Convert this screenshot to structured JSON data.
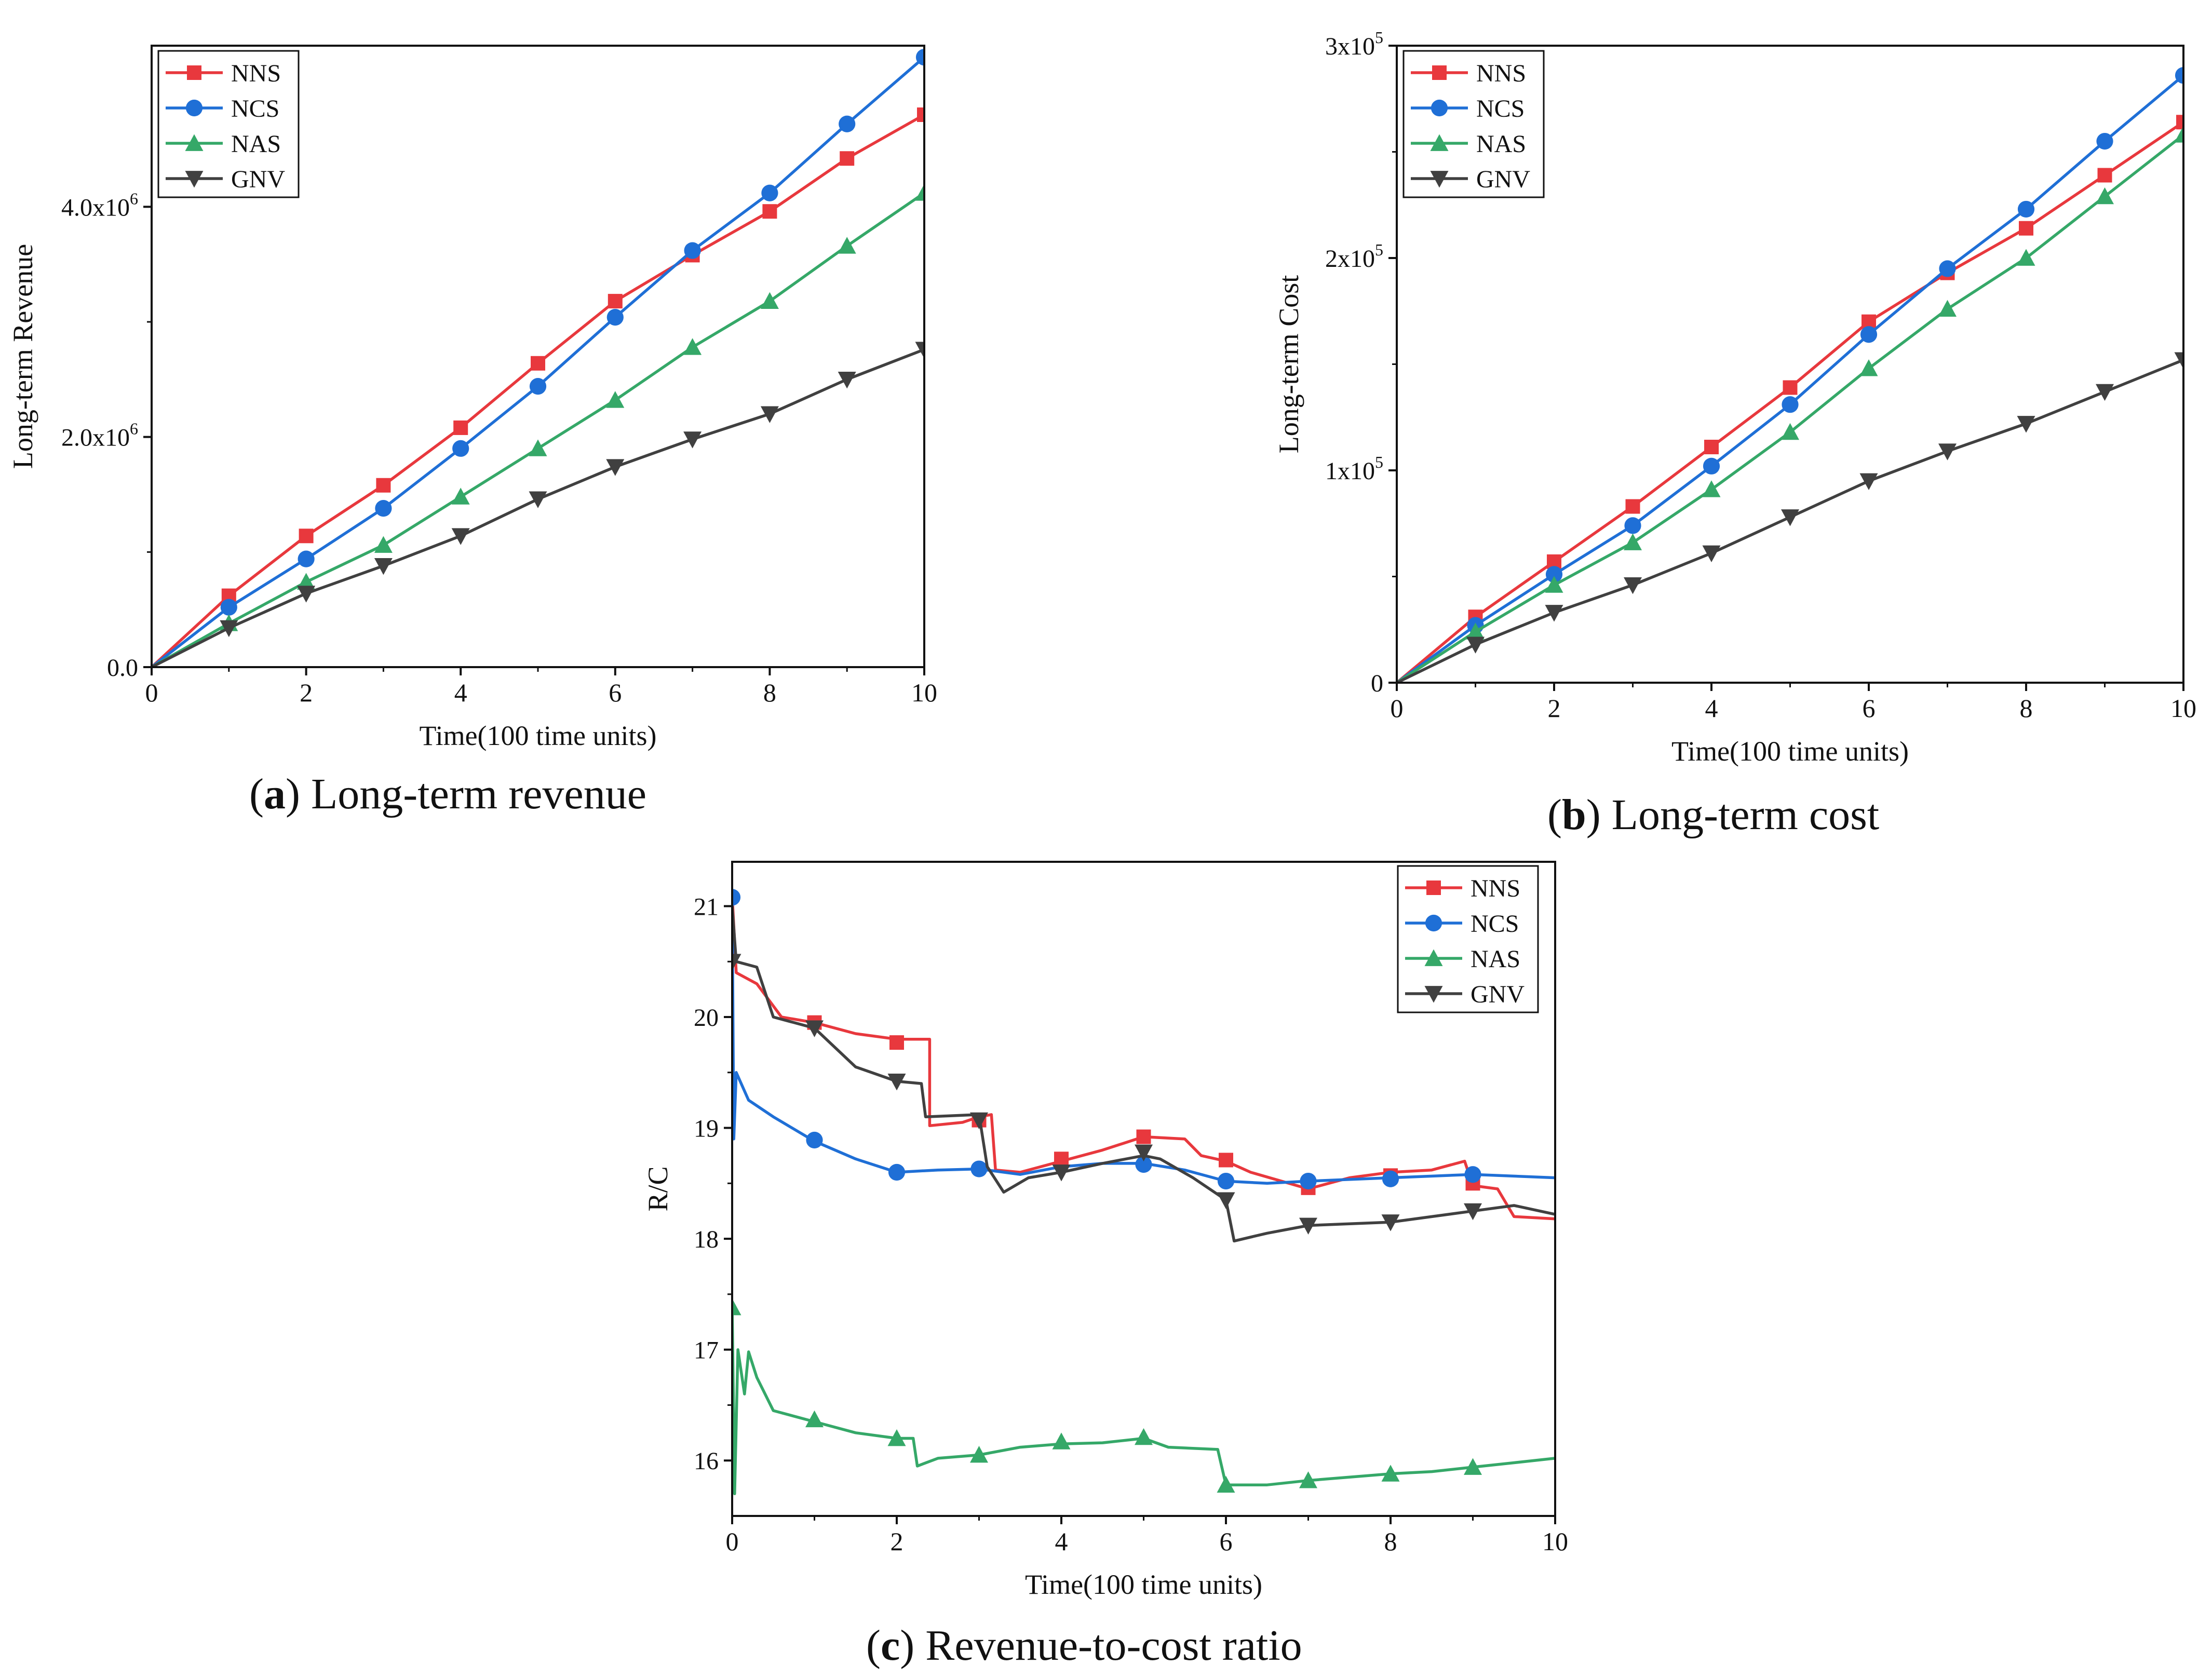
{
  "figure": {
    "captions": [
      {
        "letter": "a",
        "open": "(",
        "close": ") Long-term revenue"
      },
      {
        "letter": "b",
        "open": "(",
        "close": ") Long-term cost"
      },
      {
        "letter": "c",
        "open": "(",
        "close": ") Revenue-to-cost ratio"
      }
    ]
  },
  "colors": {
    "NNS": "#e8383d",
    "NCS": "#1f6fd6",
    "NAS": "#35a868",
    "GNV": "#404040"
  },
  "chart_data": [
    {
      "id": "a",
      "type": "line",
      "title": "",
      "xlabel": "Time(100 time units)",
      "ylabel": "Long-term Revenue",
      "xlim": [
        0,
        10
      ],
      "ylim": [
        0,
        5400000
      ],
      "xticks": [
        {
          "v": 0,
          "label": "0"
        },
        {
          "v": 2,
          "label": "2"
        },
        {
          "v": 4,
          "label": "4"
        },
        {
          "v": 6,
          "label": "6"
        },
        {
          "v": 8,
          "label": "8"
        },
        {
          "v": 10,
          "label": "10"
        }
      ],
      "yticks": [
        {
          "v": 0,
          "base": "0.0",
          "exp": ""
        },
        {
          "v": 2000000,
          "base": "2.0x10",
          "exp": "6"
        },
        {
          "v": 4000000,
          "base": "4.0x10",
          "exp": "6"
        }
      ],
      "legend": {
        "position": "top-left",
        "entries": [
          "NNS",
          "NCS",
          "NAS",
          "GNV"
        ]
      },
      "x": [
        0,
        1,
        2,
        3,
        4,
        5,
        6,
        7,
        8,
        9,
        10
      ],
      "series": [
        {
          "name": "NNS",
          "marker": "square",
          "values": [
            0,
            620000,
            1140000,
            1580000,
            2080000,
            2640000,
            3180000,
            3580000,
            3960000,
            4420000,
            4800000
          ]
        },
        {
          "name": "NCS",
          "marker": "circle",
          "values": [
            0,
            520000,
            940000,
            1380000,
            1900000,
            2440000,
            3040000,
            3620000,
            4120000,
            4720000,
            5300000
          ]
        },
        {
          "name": "NAS",
          "marker": "triangle-up",
          "values": [
            0,
            380000,
            740000,
            1060000,
            1480000,
            1900000,
            2320000,
            2780000,
            3180000,
            3660000,
            4120000
          ]
        },
        {
          "name": "GNV",
          "marker": "triangle-down",
          "values": [
            0,
            340000,
            640000,
            880000,
            1140000,
            1460000,
            1740000,
            1980000,
            2200000,
            2500000,
            2760000
          ]
        }
      ]
    },
    {
      "id": "b",
      "type": "line",
      "title": "",
      "xlabel": "Time(100 time units)",
      "ylabel": "Long-term Cost",
      "xlim": [
        0,
        10
      ],
      "ylim": [
        0,
        300000
      ],
      "xticks": [
        {
          "v": 0,
          "label": "0"
        },
        {
          "v": 2,
          "label": "2"
        },
        {
          "v": 4,
          "label": "4"
        },
        {
          "v": 6,
          "label": "6"
        },
        {
          "v": 8,
          "label": "8"
        },
        {
          "v": 10,
          "label": "10"
        }
      ],
      "yticks": [
        {
          "v": 0,
          "base": "0",
          "exp": ""
        },
        {
          "v": 100000,
          "base": "1x10",
          "exp": "5"
        },
        {
          "v": 200000,
          "base": "2x10",
          "exp": "5"
        },
        {
          "v": 300000,
          "base": "3x10",
          "exp": "5"
        }
      ],
      "legend": {
        "position": "top-left",
        "entries": [
          "NNS",
          "NCS",
          "NAS",
          "GNV"
        ]
      },
      "x": [
        0,
        1,
        2,
        3,
        4,
        5,
        6,
        7,
        8,
        9,
        10
      ],
      "series": [
        {
          "name": "NNS",
          "marker": "square",
          "values": [
            0,
            31000,
            57000,
            83000,
            111000,
            139000,
            170000,
            193000,
            214000,
            239000,
            264000
          ]
        },
        {
          "name": "NCS",
          "marker": "circle",
          "values": [
            0,
            27000,
            51000,
            74000,
            102000,
            131000,
            164000,
            195000,
            223000,
            255000,
            286000
          ]
        },
        {
          "name": "NAS",
          "marker": "triangle-up",
          "values": [
            0,
            24000,
            46000,
            66000,
            91000,
            118000,
            148000,
            176000,
            200000,
            229000,
            258000
          ]
        },
        {
          "name": "GNV",
          "marker": "triangle-down",
          "values": [
            0,
            18000,
            33000,
            46000,
            61000,
            78000,
            95000,
            109000,
            122000,
            137000,
            152000
          ]
        }
      ]
    },
    {
      "id": "c",
      "type": "line",
      "title": "",
      "xlabel": "Time(100 time units)",
      "ylabel": "R/C",
      "xlim": [
        0,
        10
      ],
      "ylim": [
        15.5,
        21.4
      ],
      "xticks": [
        {
          "v": 0,
          "label": "0"
        },
        {
          "v": 2,
          "label": "2"
        },
        {
          "v": 4,
          "label": "4"
        },
        {
          "v": 6,
          "label": "6"
        },
        {
          "v": 8,
          "label": "8"
        },
        {
          "v": 10,
          "label": "10"
        }
      ],
      "yticks": [
        {
          "v": 16,
          "base": "16",
          "exp": ""
        },
        {
          "v": 17,
          "base": "17",
          "exp": ""
        },
        {
          "v": 18,
          "base": "18",
          "exp": ""
        },
        {
          "v": 19,
          "base": "19",
          "exp": ""
        },
        {
          "v": 20,
          "base": "20",
          "exp": ""
        },
        {
          "v": 21,
          "base": "21",
          "exp": ""
        }
      ],
      "legend": {
        "position": "top-right",
        "entries": [
          "NNS",
          "NCS",
          "NAS",
          "GNV"
        ]
      },
      "series": [
        {
          "name": "NNS",
          "marker": "square",
          "points": [
            [
              0,
              21.1
            ],
            [
              0.05,
              20.4
            ],
            [
              0.3,
              20.3
            ],
            [
              0.6,
              20.0
            ],
            [
              1.0,
              19.95
            ],
            [
              1.5,
              19.85
            ],
            [
              2.0,
              19.8
            ],
            [
              2.4,
              19.8
            ],
            [
              2.4,
              19.02
            ],
            [
              2.8,
              19.05
            ],
            [
              3.0,
              19.1
            ],
            [
              3.15,
              19.12
            ],
            [
              3.2,
              18.62
            ],
            [
              3.5,
              18.6
            ],
            [
              4.0,
              18.7
            ],
            [
              4.5,
              18.8
            ],
            [
              5.0,
              18.92
            ],
            [
              5.5,
              18.9
            ],
            [
              5.7,
              18.75
            ],
            [
              6.0,
              18.7
            ],
            [
              6.3,
              18.6
            ],
            [
              7.0,
              18.45
            ],
            [
              7.5,
              18.55
            ],
            [
              8.0,
              18.6
            ],
            [
              8.5,
              18.62
            ],
            [
              8.9,
              18.7
            ],
            [
              9.0,
              18.48
            ],
            [
              9.3,
              18.45
            ],
            [
              9.5,
              18.2
            ],
            [
              10.0,
              18.18
            ]
          ],
          "markers": [
            [
              1,
              19.95
            ],
            [
              2,
              19.77
            ],
            [
              3,
              19.07
            ],
            [
              4,
              18.72
            ],
            [
              5,
              18.92
            ],
            [
              6,
              18.71
            ],
            [
              7,
              18.46
            ],
            [
              8,
              18.57
            ],
            [
              9,
              18.5
            ]
          ]
        },
        {
          "name": "NCS",
          "marker": "circle",
          "points": [
            [
              0,
              21.1
            ],
            [
              0.02,
              18.9
            ],
            [
              0.05,
              19.5
            ],
            [
              0.2,
              19.25
            ],
            [
              0.5,
              19.1
            ],
            [
              1.0,
              18.88
            ],
            [
              1.5,
              18.72
            ],
            [
              2.0,
              18.6
            ],
            [
              2.5,
              18.62
            ],
            [
              3.0,
              18.63
            ],
            [
              3.5,
              18.58
            ],
            [
              4.0,
              18.65
            ],
            [
              4.5,
              18.68
            ],
            [
              5.0,
              18.68
            ],
            [
              5.5,
              18.62
            ],
            [
              6.0,
              18.52
            ],
            [
              6.5,
              18.5
            ],
            [
              7.0,
              18.52
            ],
            [
              8.0,
              18.55
            ],
            [
              9.0,
              18.58
            ],
            [
              10.0,
              18.55
            ]
          ],
          "markers": [
            [
              0,
              21.08
            ],
            [
              1,
              18.89
            ],
            [
              2,
              18.6
            ],
            [
              3,
              18.63
            ],
            [
              5,
              18.67
            ],
            [
              6,
              18.52
            ],
            [
              7,
              18.52
            ],
            [
              8,
              18.54
            ],
            [
              9,
              18.58
            ]
          ]
        },
        {
          "name": "NAS",
          "marker": "triangle-up",
          "points": [
            [
              0,
              17.4
            ],
            [
              0.03,
              15.7
            ],
            [
              0.07,
              17.0
            ],
            [
              0.15,
              16.6
            ],
            [
              0.2,
              16.98
            ],
            [
              0.3,
              16.75
            ],
            [
              0.5,
              16.45
            ],
            [
              1.0,
              16.35
            ],
            [
              1.5,
              16.25
            ],
            [
              2.0,
              16.2
            ],
            [
              2.2,
              16.2
            ],
            [
              2.25,
              15.95
            ],
            [
              2.5,
              16.02
            ],
            [
              3.0,
              16.05
            ],
            [
              3.5,
              16.12
            ],
            [
              4.0,
              16.15
            ],
            [
              4.5,
              16.16
            ],
            [
              5.0,
              16.2
            ],
            [
              5.3,
              16.12
            ],
            [
              5.9,
              16.1
            ],
            [
              6.0,
              15.78
            ],
            [
              6.5,
              15.78
            ],
            [
              7.0,
              15.82
            ],
            [
              7.5,
              15.85
            ],
            [
              8.0,
              15.88
            ],
            [
              8.5,
              15.9
            ],
            [
              9.0,
              15.94
            ],
            [
              9.5,
              15.98
            ],
            [
              10.0,
              16.02
            ]
          ],
          "markers": [
            [
              0,
              17.38
            ],
            [
              1,
              16.37
            ],
            [
              2,
              16.2
            ],
            [
              3,
              16.05
            ],
            [
              4,
              16.17
            ],
            [
              5,
              16.21
            ],
            [
              6,
              15.78
            ],
            [
              7,
              15.82
            ],
            [
              8,
              15.88
            ],
            [
              9,
              15.94
            ]
          ]
        },
        {
          "name": "GNV",
          "marker": "triangle-down",
          "points": [
            [
              0,
              21.0
            ],
            [
              0.05,
              20.5
            ],
            [
              0.3,
              20.45
            ],
            [
              0.5,
              20.0
            ],
            [
              1.0,
              19.9
            ],
            [
              1.5,
              19.55
            ],
            [
              2.0,
              19.42
            ],
            [
              2.3,
              19.4
            ],
            [
              2.35,
              19.1
            ],
            [
              3.0,
              19.12
            ],
            [
              3.1,
              18.65
            ],
            [
              3.3,
              18.42
            ],
            [
              3.6,
              18.55
            ],
            [
              4.0,
              18.6
            ],
            [
              4.5,
              18.68
            ],
            [
              5.0,
              18.75
            ],
            [
              5.2,
              18.72
            ],
            [
              5.6,
              18.55
            ],
            [
              6.0,
              18.35
            ],
            [
              6.1,
              17.98
            ],
            [
              6.5,
              18.05
            ],
            [
              7.0,
              18.12
            ],
            [
              8.0,
              18.15
            ],
            [
              9.0,
              18.25
            ],
            [
              9.5,
              18.3
            ],
            [
              10.0,
              18.22
            ]
          ],
          "markers": [
            [
              0,
              20.5
            ],
            [
              1,
              19.9
            ],
            [
              2,
              19.42
            ],
            [
              3,
              19.07
            ],
            [
              4,
              18.6
            ],
            [
              5,
              18.78
            ],
            [
              6,
              18.35
            ],
            [
              7,
              18.12
            ],
            [
              8,
              18.15
            ],
            [
              9,
              18.25
            ]
          ]
        }
      ]
    }
  ]
}
